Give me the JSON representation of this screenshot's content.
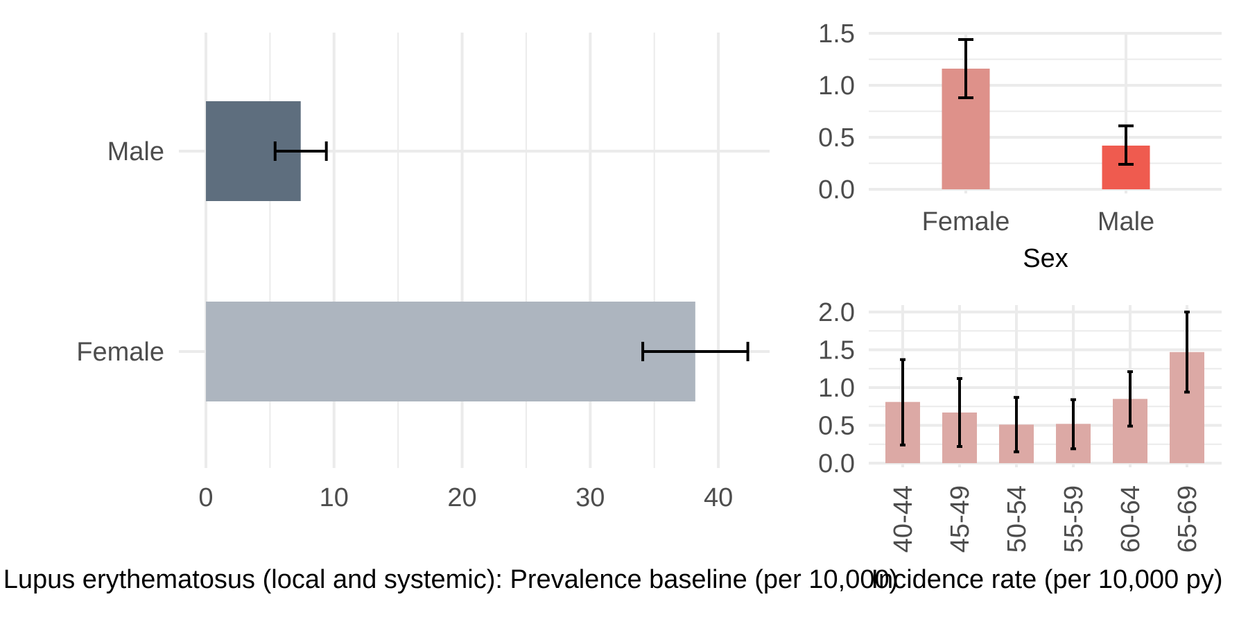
{
  "colors": {
    "male_bar": "#5e6e7e",
    "female_bar": "#adb5bf",
    "female_sex": "#de918a",
    "male_sex": "#ef5b4f",
    "age_bar": "#dca9a5",
    "error": "#000000",
    "grid": "#ebebeb"
  },
  "chart_data": [
    {
      "id": "prevalence",
      "type": "bar",
      "orientation": "horizontal",
      "categories": [
        "Male",
        "Female"
      ],
      "values": [
        7.4,
        38.2
      ],
      "error_low": [
        5.4,
        34.1
      ],
      "error_high": [
        9.4,
        42.3
      ],
      "xlim": [
        0,
        44
      ],
      "xticks": [
        0,
        10,
        20,
        30,
        40
      ],
      "xlabel": "Lupus erythematosus (local and systemic): Prevalence baseline (per 10,000)",
      "ylabel": ""
    },
    {
      "id": "incidence_sex",
      "type": "bar",
      "categories": [
        "Female",
        "Male"
      ],
      "values": [
        1.16,
        0.42
      ],
      "error_low": [
        0.88,
        0.24
      ],
      "error_high": [
        1.44,
        0.61
      ],
      "ylim": [
        0,
        1.6
      ],
      "yticks": [
        "0.0",
        "0.5",
        "1.0",
        "1.5"
      ],
      "xlabel": "Sex",
      "ylabel": ""
    },
    {
      "id": "incidence_age",
      "type": "bar",
      "categories": [
        "40-44",
        "45-49",
        "50-54",
        "55-59",
        "60-64",
        "65-69"
      ],
      "values": [
        0.81,
        0.67,
        0.51,
        0.52,
        0.85,
        1.47
      ],
      "error_low": [
        0.24,
        0.22,
        0.15,
        0.19,
        0.49,
        0.94
      ],
      "error_high": [
        1.37,
        1.12,
        0.87,
        0.84,
        1.21,
        2.0
      ],
      "ylim": [
        0,
        2.1
      ],
      "yticks": [
        "0.0",
        "0.5",
        "1.0",
        "1.5",
        "2.0"
      ],
      "xlabel": "Incidence rate (per 10,000 py)",
      "ylabel": ""
    }
  ]
}
